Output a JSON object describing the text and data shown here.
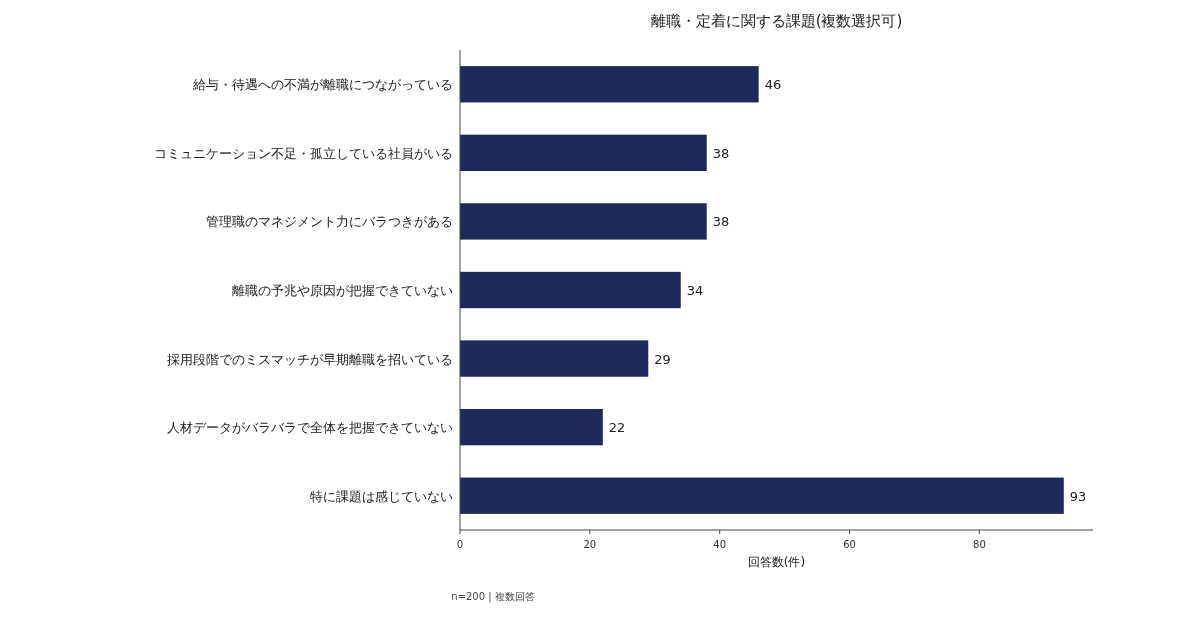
{
  "chart_data": {
    "type": "bar",
    "orientation": "horizontal",
    "title": "離職・定着に関する課題(複数選択可)",
    "xlabel": "回答数(件)",
    "categories": [
      "給与・待遇への不満が離職につながっている",
      "コミュニケーション不足・孤立している社員がいる",
      "管理職のマネジメント力にバラつきがある",
      "離職の予兆や原因が把握できていない",
      "採用段階でのミスマッチが早期離職を招いている",
      "人材データがバラバラで全体を把握できていない",
      "特に課題は感じていない"
    ],
    "values": [
      46,
      38,
      38,
      34,
      29,
      22,
      93
    ],
    "color": "#1f2a5a",
    "xlim": [
      0,
      97.5
    ],
    "xticks": [
      0,
      20,
      40,
      60,
      80
    ],
    "data_labels": true,
    "annotations": [
      "n=200 | 複数回答"
    ]
  }
}
